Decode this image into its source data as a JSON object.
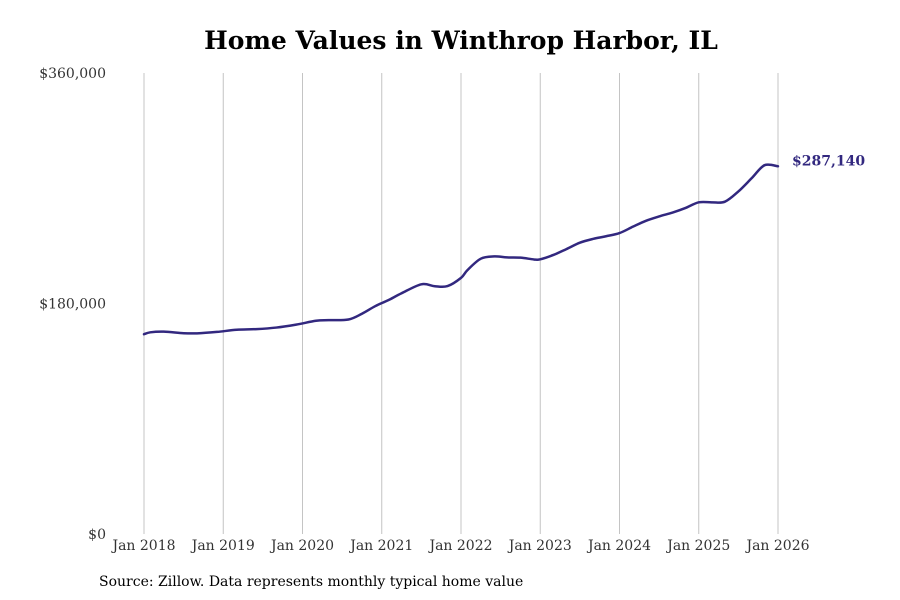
{
  "chart_data": {
    "type": "line",
    "title": "Home Values in Winthrop Harbor, IL",
    "xlabel": "",
    "ylabel": "",
    "ylim": [
      0,
      360000
    ],
    "xlim": [
      2018.0,
      2026.0
    ],
    "grid": "vertical",
    "y_ticks": [
      {
        "value": 0,
        "label": "$0"
      },
      {
        "value": 180000,
        "label": "$180,000"
      },
      {
        "value": 360000,
        "label": "$360,000"
      }
    ],
    "x_ticks": [
      {
        "value": 2018,
        "label": "Jan 2018"
      },
      {
        "value": 2019,
        "label": "Jan 2019"
      },
      {
        "value": 2020,
        "label": "Jan 2020"
      },
      {
        "value": 2021,
        "label": "Jan 2021"
      },
      {
        "value": 2022,
        "label": "Jan 2022"
      },
      {
        "value": 2023,
        "label": "Jan 2023"
      },
      {
        "value": 2024,
        "label": "Jan 2024"
      },
      {
        "value": 2025,
        "label": "Jan 2025"
      },
      {
        "value": 2026,
        "label": "Jan 2026"
      }
    ],
    "series": [
      {
        "name": "Typical home value",
        "color": "#32287f",
        "x": [
          2018.0,
          2018.08,
          2018.25,
          2018.5,
          2018.67,
          2018.92,
          2019.17,
          2019.42,
          2019.67,
          2019.92,
          2020.17,
          2020.33,
          2020.58,
          2020.75,
          2020.92,
          2021.08,
          2021.25,
          2021.5,
          2021.67,
          2021.83,
          2022.0,
          2022.08,
          2022.25,
          2022.42,
          2022.58,
          2022.75,
          2022.92,
          2023.0,
          2023.17,
          2023.33,
          2023.5,
          2023.67,
          2023.83,
          2024.0,
          2024.17,
          2024.33,
          2024.5,
          2024.67,
          2024.83,
          2025.0,
          2025.17,
          2025.33,
          2025.5,
          2025.67,
          2025.83,
          2026.0
        ],
        "values": [
          156000,
          157500,
          158000,
          156800,
          156700,
          157800,
          159500,
          160000,
          161200,
          163500,
          166500,
          167000,
          167500,
          172000,
          178000,
          182500,
          188000,
          195000,
          193500,
          193600,
          200000,
          206000,
          215000,
          216800,
          216000,
          215800,
          214400,
          214500,
          218000,
          222500,
          227500,
          230500,
          232500,
          235000,
          240000,
          244500,
          248000,
          251000,
          254500,
          259000,
          259000,
          259500,
          267500,
          278000,
          288000,
          287140
        ]
      }
    ],
    "end_label": "$287,140"
  },
  "source_note": "Source: Zillow. Data represents monthly typical home value"
}
